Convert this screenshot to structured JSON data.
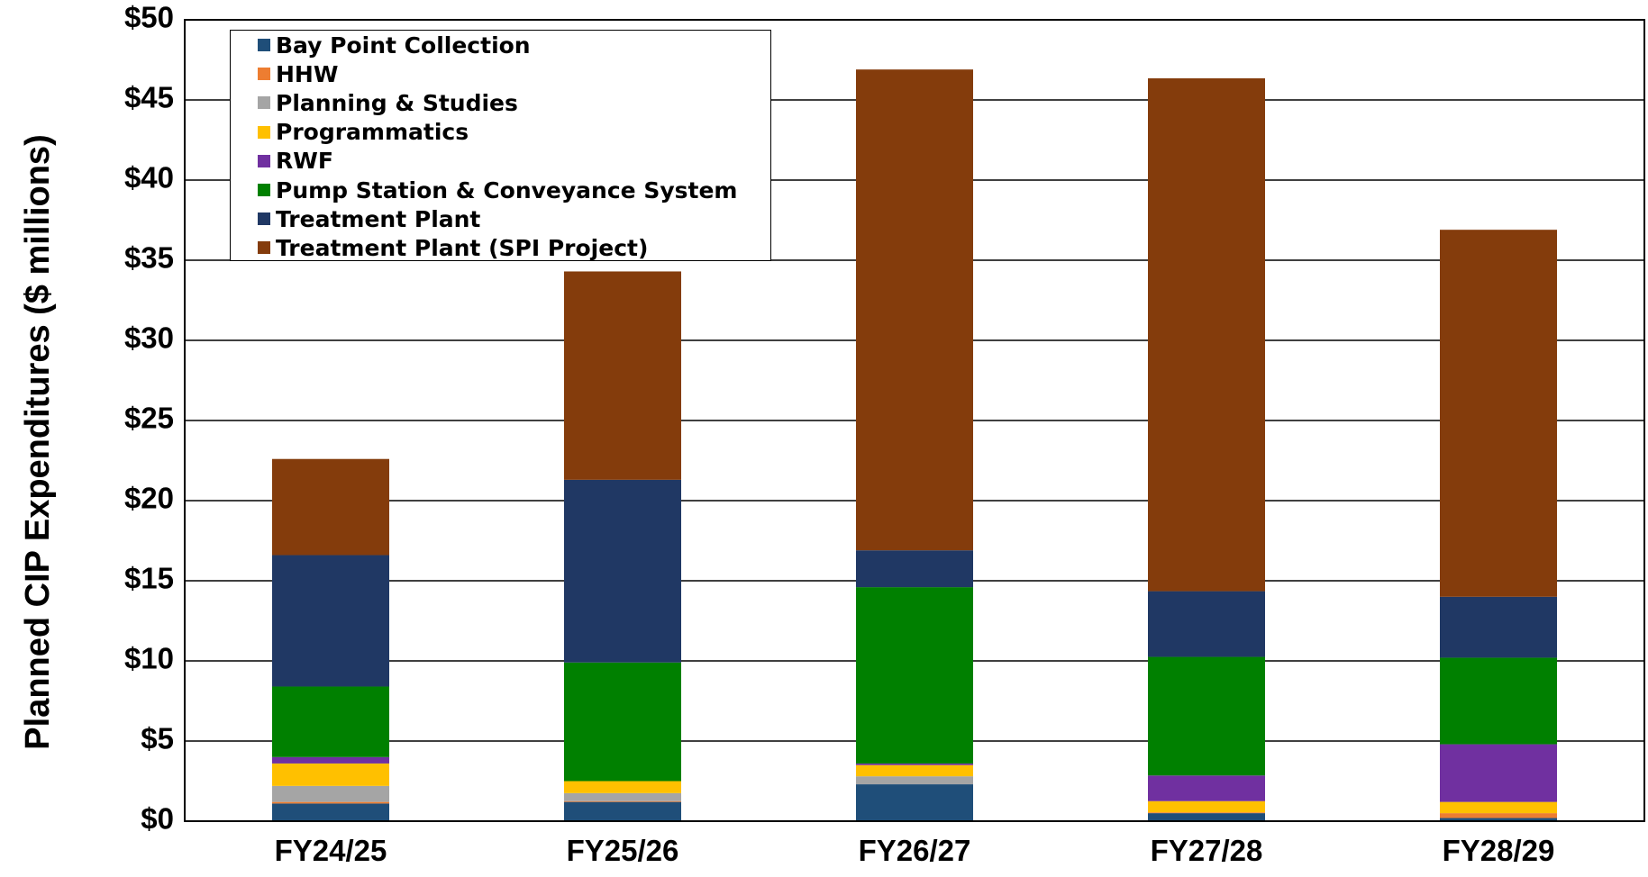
{
  "chart_data": {
    "type": "bar",
    "stacked": true,
    "title": "",
    "xlabel": "",
    "ylabel": "Planned CIP Expenditures ($ millions)",
    "ylim": [
      0,
      50
    ],
    "yticks": [
      0,
      5,
      10,
      15,
      20,
      25,
      30,
      35,
      40,
      45,
      50
    ],
    "ytick_labels": [
      "$0",
      "$5",
      "$10",
      "$15",
      "$20",
      "$25",
      "$30",
      "$35",
      "$40",
      "$45",
      "$50"
    ],
    "grid": "horizontal",
    "legend_position": "top-left",
    "categories": [
      "FY24/25",
      "FY25/26",
      "FY26/27",
      "FY27/28",
      "FY28/29"
    ],
    "series": [
      {
        "name": "Bay Point Collection",
        "color": "#1f4e79",
        "values": [
          1.1,
          1.2,
          2.3,
          0.5,
          0.2
        ]
      },
      {
        "name": "HHW",
        "color": "#ed7d31",
        "values": [
          0.1,
          0.05,
          0.0,
          0.05,
          0.3
        ]
      },
      {
        "name": "Planning & Studies",
        "color": "#a5a5a5",
        "values": [
          1.0,
          0.5,
          0.5,
          0.0,
          0.0
        ]
      },
      {
        "name": "Programmatics",
        "color": "#ffc000",
        "values": [
          1.4,
          0.75,
          0.7,
          0.7,
          0.7
        ]
      },
      {
        "name": "RWF",
        "color": "#7030a0",
        "values": [
          0.4,
          0.0,
          0.1,
          1.6,
          3.6
        ]
      },
      {
        "name": "Pump Station & Conveyance System",
        "color": "#008000",
        "values": [
          4.4,
          7.4,
          11.0,
          7.4,
          5.4
        ]
      },
      {
        "name": "Treatment Plant",
        "color": "#203864",
        "values": [
          8.2,
          11.4,
          2.3,
          4.1,
          3.8
        ]
      },
      {
        "name": "Treatment Plant (SPI Project)",
        "color": "#843c0c",
        "values": [
          6.0,
          13.0,
          30.0,
          32.0,
          22.9
        ]
      }
    ]
  }
}
